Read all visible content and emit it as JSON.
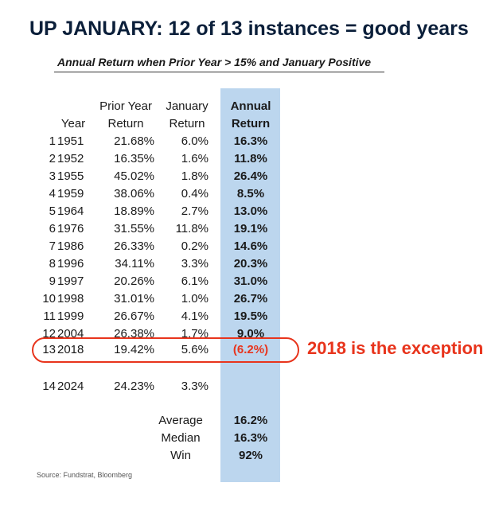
{
  "title": "UP JANUARY: 12 of 13 instances = good years",
  "subtitle": "Annual Return when Prior Year > 15% and January Positive",
  "headers": {
    "year": "Year",
    "prior_line1": "Prior Year",
    "prior_line2": "Return",
    "jan_line1": "January",
    "jan_line2": "Return",
    "annual_line1": "Annual",
    "annual_line2": "Return"
  },
  "rows": [
    {
      "idx": "1",
      "year": "1951",
      "prior": "21.68%",
      "jan": "6.0%",
      "annual": "16.3%"
    },
    {
      "idx": "2",
      "year": "1952",
      "prior": "16.35%",
      "jan": "1.6%",
      "annual": "11.8%"
    },
    {
      "idx": "3",
      "year": "1955",
      "prior": "45.02%",
      "jan": "1.8%",
      "annual": "26.4%"
    },
    {
      "idx": "4",
      "year": "1959",
      "prior": "38.06%",
      "jan": "0.4%",
      "annual": "8.5%"
    },
    {
      "idx": "5",
      "year": "1964",
      "prior": "18.89%",
      "jan": "2.7%",
      "annual": "13.0%"
    },
    {
      "idx": "6",
      "year": "1976",
      "prior": "31.55%",
      "jan": "11.8%",
      "annual": "19.1%"
    },
    {
      "idx": "7",
      "year": "1986",
      "prior": "26.33%",
      "jan": "0.2%",
      "annual": "14.6%"
    },
    {
      "idx": "8",
      "year": "1996",
      "prior": "34.11%",
      "jan": "3.3%",
      "annual": "20.3%"
    },
    {
      "idx": "9",
      "year": "1997",
      "prior": "20.26%",
      "jan": "6.1%",
      "annual": "31.0%"
    },
    {
      "idx": "10",
      "year": "1998",
      "prior": "31.01%",
      "jan": "1.0%",
      "annual": "26.7%"
    },
    {
      "idx": "11",
      "year": "1999",
      "prior": "26.67%",
      "jan": "4.1%",
      "annual": "19.5%"
    },
    {
      "idx": "12",
      "year": "2004",
      "prior": "26.38%",
      "jan": "1.7%",
      "annual": "9.0%"
    },
    {
      "idx": "13",
      "year": "2018",
      "prior": "19.42%",
      "jan": "5.6%",
      "annual": "(6.2%)"
    },
    {
      "idx": "14",
      "year": "2024",
      "prior": "24.23%",
      "jan": "3.3%",
      "annual": ""
    }
  ],
  "exception_label": "2018 is the exception",
  "summary": [
    {
      "label": "Average",
      "value": "16.2%"
    },
    {
      "label": "Median",
      "value": "16.3%"
    },
    {
      "label": "Win",
      "value": "92%"
    }
  ],
  "source": "Source: Fundstrat, Bloomberg",
  "colors": {
    "title": "#0b1f3a",
    "annual_band": "#bcd6ee",
    "highlight_red": "#e8341c"
  }
}
